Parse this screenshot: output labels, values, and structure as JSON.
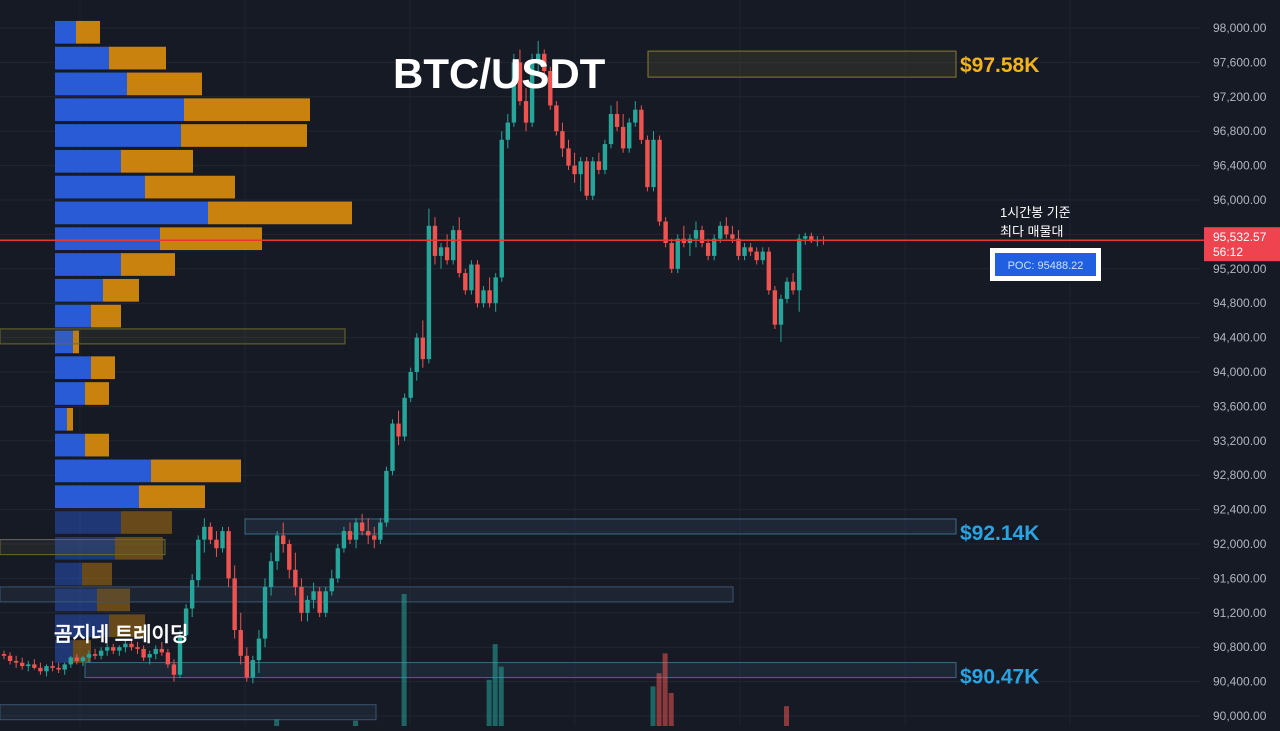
{
  "title": "BTC/USDT",
  "watermark": "곰지네 트레이딩",
  "annotation": {
    "line1": "1시간봉 기준",
    "line2": "최다 매물대"
  },
  "poc": {
    "label": "POC: 95488.22",
    "value": 95488.22
  },
  "price_tag": {
    "price": "95,532.57",
    "countdown": "56:12",
    "value": 95532.57
  },
  "levels": [
    {
      "label": "$97.58K",
      "value": 97580,
      "color": "#f5b31a"
    },
    {
      "label": "$92.14K",
      "value": 92140,
      "color": "#2aa3e3"
    },
    {
      "label": "$90.47K",
      "value": 90470,
      "color": "#2aa3e3"
    }
  ],
  "colors": {
    "up": "#26a69a",
    "down": "#ef5350",
    "current_line": "#e53935",
    "vp_buy": "#2a5bd7",
    "vp_sell": "#c9820e",
    "background": "#161a25"
  },
  "chart_data": {
    "type": "candlestick",
    "ylim": [
      89950,
      98200
    ],
    "y_ticks": [
      "98,000.00",
      "97,600.00",
      "97,200.00",
      "96,800.00",
      "96,400.00",
      "96,000.00",
      "95,600.00",
      "95,200.00",
      "94,800.00",
      "94,400.00",
      "94,000.00",
      "93,600.00",
      "93,200.00",
      "92,800.00",
      "92,400.00",
      "92,000.00",
      "91,600.00",
      "91,200.00",
      "90,800.00",
      "90,400.00",
      "90,000.00"
    ],
    "y_tick_values": [
      98000,
      97600,
      97200,
      96800,
      96400,
      96000,
      95600,
      95200,
      94800,
      94400,
      94000,
      93600,
      93200,
      92800,
      92400,
      92000,
      91600,
      91200,
      90800,
      90400,
      90000
    ],
    "candles": [
      [
        90720,
        90760,
        90660,
        90700
      ],
      [
        90700,
        90740,
        90600,
        90640
      ],
      [
        90640,
        90700,
        90560,
        90620
      ],
      [
        90620,
        90680,
        90540,
        90580
      ],
      [
        90580,
        90640,
        90520,
        90600
      ],
      [
        90600,
        90660,
        90540,
        90560
      ],
      [
        90560,
        90620,
        90480,
        90520
      ],
      [
        90520,
        90600,
        90460,
        90580
      ],
      [
        90580,
        90640,
        90520,
        90560
      ],
      [
        90560,
        90620,
        90500,
        90540
      ],
      [
        90540,
        90620,
        90480,
        90600
      ],
      [
        90600,
        90700,
        90560,
        90680
      ],
      [
        90680,
        90720,
        90600,
        90640
      ],
      [
        90640,
        90700,
        90580,
        90680
      ],
      [
        90680,
        90760,
        90620,
        90720
      ],
      [
        90720,
        90780,
        90660,
        90700
      ],
      [
        90700,
        90800,
        90660,
        90760
      ],
      [
        90760,
        90840,
        90700,
        90800
      ],
      [
        90800,
        90840,
        90720,
        90760
      ],
      [
        90760,
        90820,
        90700,
        90800
      ],
      [
        90800,
        90880,
        90740,
        90840
      ],
      [
        90840,
        90900,
        90760,
        90800
      ],
      [
        90800,
        90860,
        90720,
        90780
      ],
      [
        90780,
        90820,
        90640,
        90680
      ],
      [
        90680,
        90760,
        90600,
        90720
      ],
      [
        90720,
        90820,
        90660,
        90780
      ],
      [
        90780,
        90860,
        90700,
        90740
      ],
      [
        90740,
        90780,
        90560,
        90600
      ],
      [
        90600,
        90660,
        90400,
        90480
      ],
      [
        90480,
        91000,
        90440,
        90940
      ],
      [
        90940,
        91300,
        90880,
        91250
      ],
      [
        91250,
        91650,
        91150,
        91580
      ],
      [
        91580,
        92100,
        91500,
        92050
      ],
      [
        92050,
        92300,
        91900,
        92200
      ],
      [
        92200,
        92250,
        92000,
        92050
      ],
      [
        92050,
        92150,
        91850,
        91950
      ],
      [
        91950,
        92200,
        91900,
        92150
      ],
      [
        92150,
        92200,
        91500,
        91600
      ],
      [
        91600,
        91750,
        90900,
        91000
      ],
      [
        91000,
        91200,
        90600,
        90700
      ],
      [
        90700,
        90800,
        90400,
        90450
      ],
      [
        90450,
        90700,
        90380,
        90650
      ],
      [
        90650,
        91000,
        90500,
        90900
      ],
      [
        90900,
        91600,
        90800,
        91500
      ],
      [
        91500,
        91900,
        91400,
        91800
      ],
      [
        91800,
        92150,
        91700,
        92100
      ],
      [
        92100,
        92250,
        91900,
        92000
      ],
      [
        92000,
        92050,
        91600,
        91700
      ],
      [
        91700,
        91900,
        91400,
        91500
      ],
      [
        91500,
        91600,
        91100,
        91200
      ],
      [
        91200,
        91400,
        91100,
        91350
      ],
      [
        91350,
        91550,
        91250,
        91450
      ],
      [
        91450,
        91500,
        91150,
        91200
      ],
      [
        91200,
        91500,
        91150,
        91450
      ],
      [
        91450,
        91700,
        91400,
        91600
      ],
      [
        91600,
        92000,
        91550,
        91950
      ],
      [
        91950,
        92200,
        91900,
        92150
      ],
      [
        92150,
        92250,
        92000,
        92050
      ],
      [
        92050,
        92300,
        91950,
        92250
      ],
      [
        92250,
        92350,
        92100,
        92150
      ],
      [
        92150,
        92300,
        92000,
        92100
      ],
      [
        92100,
        92200,
        91950,
        92050
      ],
      [
        92050,
        92300,
        92000,
        92250
      ],
      [
        92250,
        92900,
        92200,
        92850
      ],
      [
        92850,
        93450,
        92800,
        93400
      ],
      [
        93400,
        93550,
        93150,
        93250
      ],
      [
        93250,
        93750,
        93200,
        93700
      ],
      [
        93700,
        94050,
        93650,
        94000
      ],
      [
        94000,
        94450,
        93900,
        94400
      ],
      [
        94400,
        94600,
        94050,
        94150
      ],
      [
        94150,
        95900,
        94100,
        95700
      ],
      [
        95700,
        95800,
        95250,
        95350
      ],
      [
        95350,
        95500,
        95200,
        95450
      ],
      [
        95450,
        95600,
        95250,
        95300
      ],
      [
        95300,
        95700,
        95250,
        95650
      ],
      [
        95650,
        95800,
        95100,
        95150
      ],
      [
        95150,
        95200,
        94900,
        94950
      ],
      [
        94950,
        95300,
        94900,
        95250
      ],
      [
        95250,
        95300,
        94750,
        94800
      ],
      [
        94800,
        95000,
        94750,
        94950
      ],
      [
        94950,
        95100,
        94750,
        94800
      ],
      [
        94800,
        95150,
        94700,
        95100
      ],
      [
        95100,
        96800,
        95050,
        96700
      ],
      [
        96700,
        97000,
        96600,
        96900
      ],
      [
        96900,
        97700,
        96850,
        97600
      ],
      [
        97600,
        97750,
        97100,
        97150
      ],
      [
        97150,
        97300,
        96800,
        96900
      ],
      [
        96900,
        97700,
        96850,
        97600
      ],
      [
        97600,
        97850,
        97500,
        97700
      ],
      [
        97700,
        97750,
        97450,
        97500
      ],
      [
        97500,
        97550,
        97050,
        97100
      ],
      [
        97100,
        97150,
        96750,
        96800
      ],
      [
        96800,
        96900,
        96500,
        96600
      ],
      [
        96600,
        96700,
        96350,
        96400
      ],
      [
        96400,
        96550,
        96200,
        96300
      ],
      [
        96300,
        96500,
        96100,
        96450
      ],
      [
        96450,
        96500,
        96000,
        96050
      ],
      [
        96050,
        96500,
        96000,
        96450
      ],
      [
        96450,
        96550,
        96300,
        96350
      ],
      [
        96350,
        96700,
        96300,
        96650
      ],
      [
        96650,
        97100,
        96600,
        97000
      ],
      [
        97000,
        97150,
        96800,
        96850
      ],
      [
        96850,
        97000,
        96550,
        96600
      ],
      [
        96600,
        96950,
        96550,
        96900
      ],
      [
        96900,
        97150,
        96850,
        97050
      ],
      [
        97050,
        97100,
        96650,
        96700
      ],
      [
        96700,
        96750,
        96100,
        96150
      ],
      [
        96150,
        96800,
        96100,
        96700
      ],
      [
        96700,
        96750,
        95700,
        95750
      ],
      [
        95750,
        95800,
        95450,
        95500
      ],
      [
        95500,
        95550,
        95150,
        95200
      ],
      [
        95200,
        95600,
        95150,
        95550
      ],
      [
        95550,
        95700,
        95450,
        95500
      ],
      [
        95500,
        95600,
        95350,
        95550
      ],
      [
        95550,
        95750,
        95450,
        95650
      ],
      [
        95650,
        95700,
        95450,
        95500
      ],
      [
        95500,
        95550,
        95300,
        95350
      ],
      [
        95350,
        95600,
        95300,
        95550
      ],
      [
        95550,
        95750,
        95500,
        95700
      ],
      [
        95700,
        95800,
        95550,
        95600
      ],
      [
        95600,
        95700,
        95500,
        95550
      ],
      [
        95550,
        95650,
        95300,
        95350
      ],
      [
        95350,
        95500,
        95300,
        95450
      ],
      [
        95450,
        95500,
        95350,
        95400
      ],
      [
        95400,
        95450,
        95250,
        95300
      ],
      [
        95300,
        95450,
        95250,
        95400
      ],
      [
        95400,
        95450,
        94900,
        94950
      ],
      [
        94950,
        95000,
        94500,
        94550
      ],
      [
        94550,
        94900,
        94350,
        94850
      ],
      [
        94850,
        95100,
        94800,
        95050
      ],
      [
        95050,
        95150,
        94900,
        94950
      ],
      [
        94950,
        95600,
        94700,
        95550
      ],
      [
        95550,
        95620,
        95480,
        95580
      ],
      [
        95580,
        95620,
        95500,
        95520
      ],
      [
        95520,
        95580,
        95460,
        95540
      ],
      [
        95540,
        95580,
        95480,
        95532
      ]
    ],
    "volume": [
      {
        "index": 66,
        "value": 1.0,
        "up": true
      },
      {
        "index": 81,
        "value": 0.62,
        "up": true
      },
      {
        "index": 82,
        "value": 0.45,
        "up": true
      },
      {
        "index": 108,
        "value": 0.4,
        "up": false
      },
      {
        "index": 109,
        "value": 0.55,
        "up": false
      },
      {
        "index": 107,
        "value": 0.3,
        "up": true
      },
      {
        "index": 110,
        "value": 0.25,
        "up": false
      },
      {
        "index": 129,
        "value": 0.15,
        "up": false
      },
      {
        "index": 45,
        "value": 0.05,
        "up": true
      },
      {
        "index": 58,
        "value": 0.04,
        "up": true
      },
      {
        "index": 80,
        "value": 0.35,
        "up": true
      }
    ],
    "volume_profile": [
      {
        "price": 97950,
        "buy": 0.07,
        "sell": 0.08
      },
      {
        "price": 97650,
        "buy": 0.18,
        "sell": 0.19
      },
      {
        "price": 97350,
        "buy": 0.24,
        "sell": 0.25
      },
      {
        "price": 97050,
        "buy": 0.43,
        "sell": 0.42
      },
      {
        "price": 96750,
        "buy": 0.42,
        "sell": 0.42
      },
      {
        "price": 96450,
        "buy": 0.22,
        "sell": 0.24
      },
      {
        "price": 96150,
        "buy": 0.3,
        "sell": 0.3
      },
      {
        "price": 95850,
        "buy": 0.51,
        "sell": 0.48
      },
      {
        "price": 95550,
        "buy": 0.35,
        "sell": 0.34
      },
      {
        "price": 95250,
        "buy": 0.22,
        "sell": 0.18
      },
      {
        "price": 94950,
        "buy": 0.16,
        "sell": 0.12
      },
      {
        "price": 94650,
        "buy": 0.12,
        "sell": 0.1
      },
      {
        "price": 94350,
        "buy": 0.06,
        "sell": 0.02
      },
      {
        "price": 94050,
        "buy": 0.12,
        "sell": 0.08
      },
      {
        "price": 93750,
        "buy": 0.1,
        "sell": 0.08
      },
      {
        "price": 93450,
        "buy": 0.04,
        "sell": 0.02
      },
      {
        "price": 93150,
        "buy": 0.1,
        "sell": 0.08
      },
      {
        "price": 92850,
        "buy": 0.32,
        "sell": 0.3
      },
      {
        "price": 92550,
        "buy": 0.28,
        "sell": 0.22
      },
      {
        "price": 92250,
        "buy": 0.22,
        "sell": 0.17
      },
      {
        "price": 91950,
        "buy": 0.2,
        "sell": 0.16
      },
      {
        "price": 91650,
        "buy": 0.09,
        "sell": 0.1
      },
      {
        "price": 91350,
        "buy": 0.14,
        "sell": 0.11
      },
      {
        "price": 91050,
        "buy": 0.18,
        "sell": 0.12
      },
      {
        "price": 90750,
        "buy": 0.06,
        "sell": 0.06
      }
    ]
  }
}
